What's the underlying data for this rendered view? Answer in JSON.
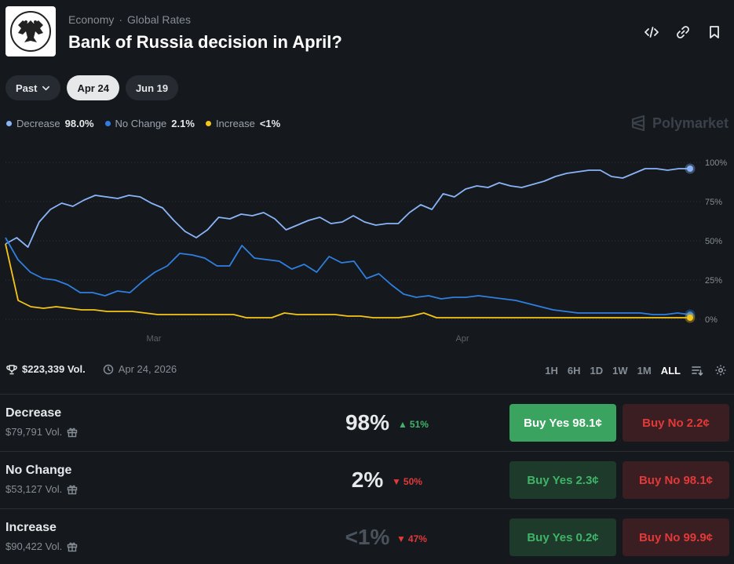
{
  "header": {
    "breadcrumb": [
      "Economy",
      "Global Rates"
    ],
    "title": "Bank of Russia decision in April?"
  },
  "date_pills": {
    "past_label": "Past",
    "pills": [
      "Apr 24",
      "Jun 19"
    ],
    "active": "Apr 24"
  },
  "legend": [
    {
      "name": "Decrease",
      "value": "98.0%",
      "color": "#8ab4f8"
    },
    {
      "name": "No Change",
      "value": "2.1%",
      "color": "#2f7fe0"
    },
    {
      "name": "Increase",
      "value": "<1%",
      "color": "#f5c518"
    }
  ],
  "brand": "Polymarket",
  "chart_data": {
    "type": "line",
    "x_tick_labels": [
      "Mar",
      "Apr"
    ],
    "y_ticks": [
      "100%",
      "75%",
      "50%",
      "25%",
      "0%"
    ],
    "ylim": [
      0,
      100
    ],
    "grid": true,
    "series": [
      {
        "name": "Decrease",
        "color": "#8ab4f8",
        "values": [
          48,
          52,
          46,
          62,
          70,
          74,
          72,
          76,
          79,
          78,
          77,
          79,
          78,
          74,
          71,
          63,
          56,
          52,
          57,
          65,
          64,
          67,
          66,
          68,
          64,
          57,
          60,
          63,
          65,
          61,
          62,
          66,
          62,
          60,
          61,
          61,
          68,
          73,
          70,
          80,
          78,
          83,
          85,
          84,
          87,
          85,
          84,
          86,
          88,
          91,
          93,
          94,
          95,
          95,
          91,
          90,
          93,
          96,
          96,
          95,
          96,
          96
        ]
      },
      {
        "name": "No Change",
        "color": "#2f7fe0",
        "values": [
          52,
          38,
          30,
          26,
          25,
          22,
          17,
          17,
          15,
          18,
          17,
          24,
          30,
          34,
          42,
          41,
          39,
          34,
          34,
          47,
          39,
          38,
          37,
          32,
          35,
          30,
          40,
          36,
          37,
          26,
          29,
          22,
          16,
          14,
          15,
          13,
          14,
          14,
          15,
          14,
          13,
          12,
          10,
          8,
          6,
          5,
          4,
          4,
          4,
          4,
          4,
          4,
          3,
          3,
          4,
          3
        ]
      },
      {
        "name": "Increase",
        "color": "#f5c518",
        "values": [
          48,
          12,
          8,
          7,
          8,
          7,
          6,
          6,
          5,
          5,
          5,
          4,
          3,
          3,
          3,
          3,
          3,
          3,
          3,
          1,
          1,
          1,
          4,
          3,
          3,
          3,
          3,
          2,
          2,
          1,
          1,
          1,
          2,
          4,
          1,
          1,
          1,
          1,
          1,
          1,
          1,
          1,
          1,
          1,
          1,
          1,
          1,
          1,
          1,
          1,
          1,
          1,
          1,
          1,
          1
        ]
      }
    ]
  },
  "stats": {
    "volume": "$223,339 Vol.",
    "end_date": "Apr 24, 2026"
  },
  "ranges": {
    "items": [
      "1H",
      "6H",
      "1D",
      "1W",
      "1M",
      "ALL"
    ],
    "active": "ALL"
  },
  "outcomes": [
    {
      "name": "Decrease",
      "volume": "$79,791 Vol.",
      "pct": "98%",
      "change": "51%",
      "change_dir": "up",
      "yes_label": "Buy Yes",
      "yes_price": "98.1¢",
      "no_label": "Buy No",
      "no_price": "2.2¢"
    },
    {
      "name": "No Change",
      "volume": "$53,127 Vol.",
      "pct": "2%",
      "change": "50%",
      "change_dir": "down",
      "yes_label": "Buy Yes",
      "yes_price": "2.3¢",
      "no_label": "Buy No",
      "no_price": "98.1¢"
    },
    {
      "name": "Increase",
      "volume": "$90,422 Vol.",
      "pct": "<1%",
      "change": "47%",
      "change_dir": "down",
      "yes_label": "Buy Yes",
      "yes_price": "0.2¢",
      "no_label": "Buy No",
      "no_price": "99.9¢"
    }
  ]
}
